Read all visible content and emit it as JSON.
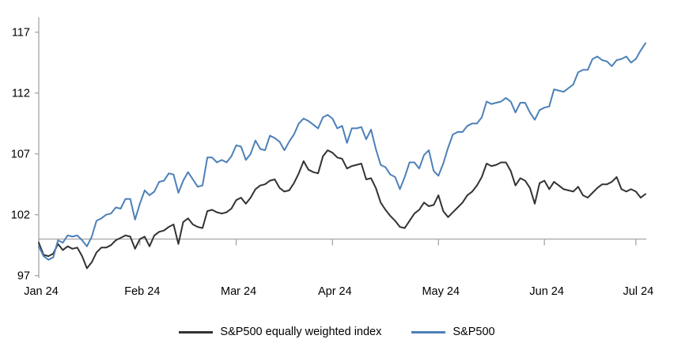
{
  "chart_data": {
    "type": "line",
    "title": "",
    "xlabel": "",
    "ylabel": "",
    "y_ticks": [
      97,
      102,
      107,
      112,
      117
    ],
    "ylim": [
      96.5,
      118.2
    ],
    "baseline_value": 100,
    "grid": "off",
    "legend_position": "bottom",
    "x_tick_labels": [
      "Jan 24",
      "Feb 24",
      "Mar 24",
      "Apr 24",
      "May 24",
      "Jun 24",
      "Jul 24"
    ],
    "x_tick_day_indices": [
      0,
      21,
      41,
      61,
      83,
      105,
      124
    ],
    "axis_color": "#a6a6a6",
    "series": [
      {
        "name": "S&P500 equally weighted index",
        "color": "#333333",
        "values": [
          99.7,
          98.7,
          98.6,
          98.8,
          99.6,
          99.1,
          99.4,
          99.2,
          99.3,
          98.6,
          97.6,
          98.1,
          98.9,
          99.3,
          99.3,
          99.5,
          99.9,
          100.1,
          100.3,
          100.2,
          99.2,
          100.0,
          100.2,
          99.4,
          100.3,
          100.6,
          100.7,
          101.0,
          101.2,
          99.6,
          101.4,
          101.7,
          101.2,
          101.0,
          100.9,
          102.3,
          102.4,
          102.2,
          102.1,
          102.2,
          102.5,
          103.2,
          103.4,
          102.9,
          103.4,
          104.1,
          104.4,
          104.5,
          104.8,
          104.9,
          104.2,
          103.9,
          104.0,
          104.6,
          105.4,
          106.4,
          105.7,
          105.5,
          105.4,
          106.8,
          107.3,
          107.1,
          106.7,
          106.6,
          105.8,
          106.0,
          106.1,
          106.2,
          104.9,
          105.0,
          104.2,
          103.0,
          102.4,
          101.9,
          101.5,
          101.0,
          100.9,
          101.5,
          102.1,
          102.4,
          103.0,
          102.7,
          102.8,
          103.6,
          102.3,
          101.8,
          102.2,
          102.6,
          103.0,
          103.6,
          103.9,
          104.4,
          105.1,
          106.2,
          106.0,
          106.1,
          106.3,
          106.3,
          105.6,
          104.4,
          105.0,
          104.8,
          104.2,
          102.9,
          104.6,
          104.8,
          104.1,
          104.7,
          104.4,
          104.1,
          104.0,
          103.9,
          104.3,
          103.6,
          103.4,
          103.8,
          104.2,
          104.5,
          104.5,
          104.7,
          105.1,
          104.1,
          103.9,
          104.1,
          103.9,
          103.4,
          103.7
        ]
      },
      {
        "name": "S&P500",
        "color": "#4d80b9",
        "values": [
          99.4,
          98.6,
          98.3,
          98.5,
          99.9,
          99.7,
          100.3,
          100.2,
          100.3,
          99.9,
          99.4,
          100.2,
          101.5,
          101.7,
          102.0,
          102.1,
          102.6,
          102.5,
          103.3,
          103.3,
          101.6,
          102.9,
          104.0,
          103.6,
          103.9,
          104.7,
          104.8,
          105.4,
          105.3,
          103.8,
          104.8,
          105.5,
          104.9,
          104.3,
          104.4,
          106.7,
          106.7,
          106.3,
          106.5,
          106.3,
          106.8,
          107.7,
          107.6,
          106.5,
          107.0,
          108.1,
          107.4,
          107.3,
          108.5,
          108.3,
          108.0,
          107.3,
          108.0,
          108.6,
          109.5,
          109.9,
          109.7,
          109.4,
          109.1,
          110.0,
          110.2,
          109.9,
          109.1,
          109.3,
          107.9,
          109.1,
          109.1,
          109.2,
          108.2,
          109.0,
          107.4,
          106.1,
          105.9,
          105.3,
          105.1,
          104.1,
          105.1,
          106.3,
          106.3,
          105.8,
          106.9,
          107.3,
          105.6,
          105.2,
          106.2,
          107.5,
          108.6,
          108.8,
          108.8,
          109.3,
          109.5,
          109.5,
          110.0,
          111.3,
          111.1,
          111.2,
          111.3,
          111.6,
          111.3,
          110.4,
          111.2,
          111.2,
          110.4,
          109.8,
          110.6,
          110.8,
          110.9,
          112.3,
          112.2,
          112.1,
          112.4,
          112.7,
          113.7,
          113.9,
          113.9,
          114.8,
          115.0,
          114.7,
          114.6,
          114.2,
          114.7,
          114.8,
          115.0,
          114.5,
          114.8,
          115.5,
          116.1
        ]
      }
    ]
  },
  "legend": {
    "items": [
      {
        "label": "S&P500 equally weighted index",
        "color": "#333333"
      },
      {
        "label": "S&P500",
        "color": "#4d80b9"
      }
    ]
  }
}
